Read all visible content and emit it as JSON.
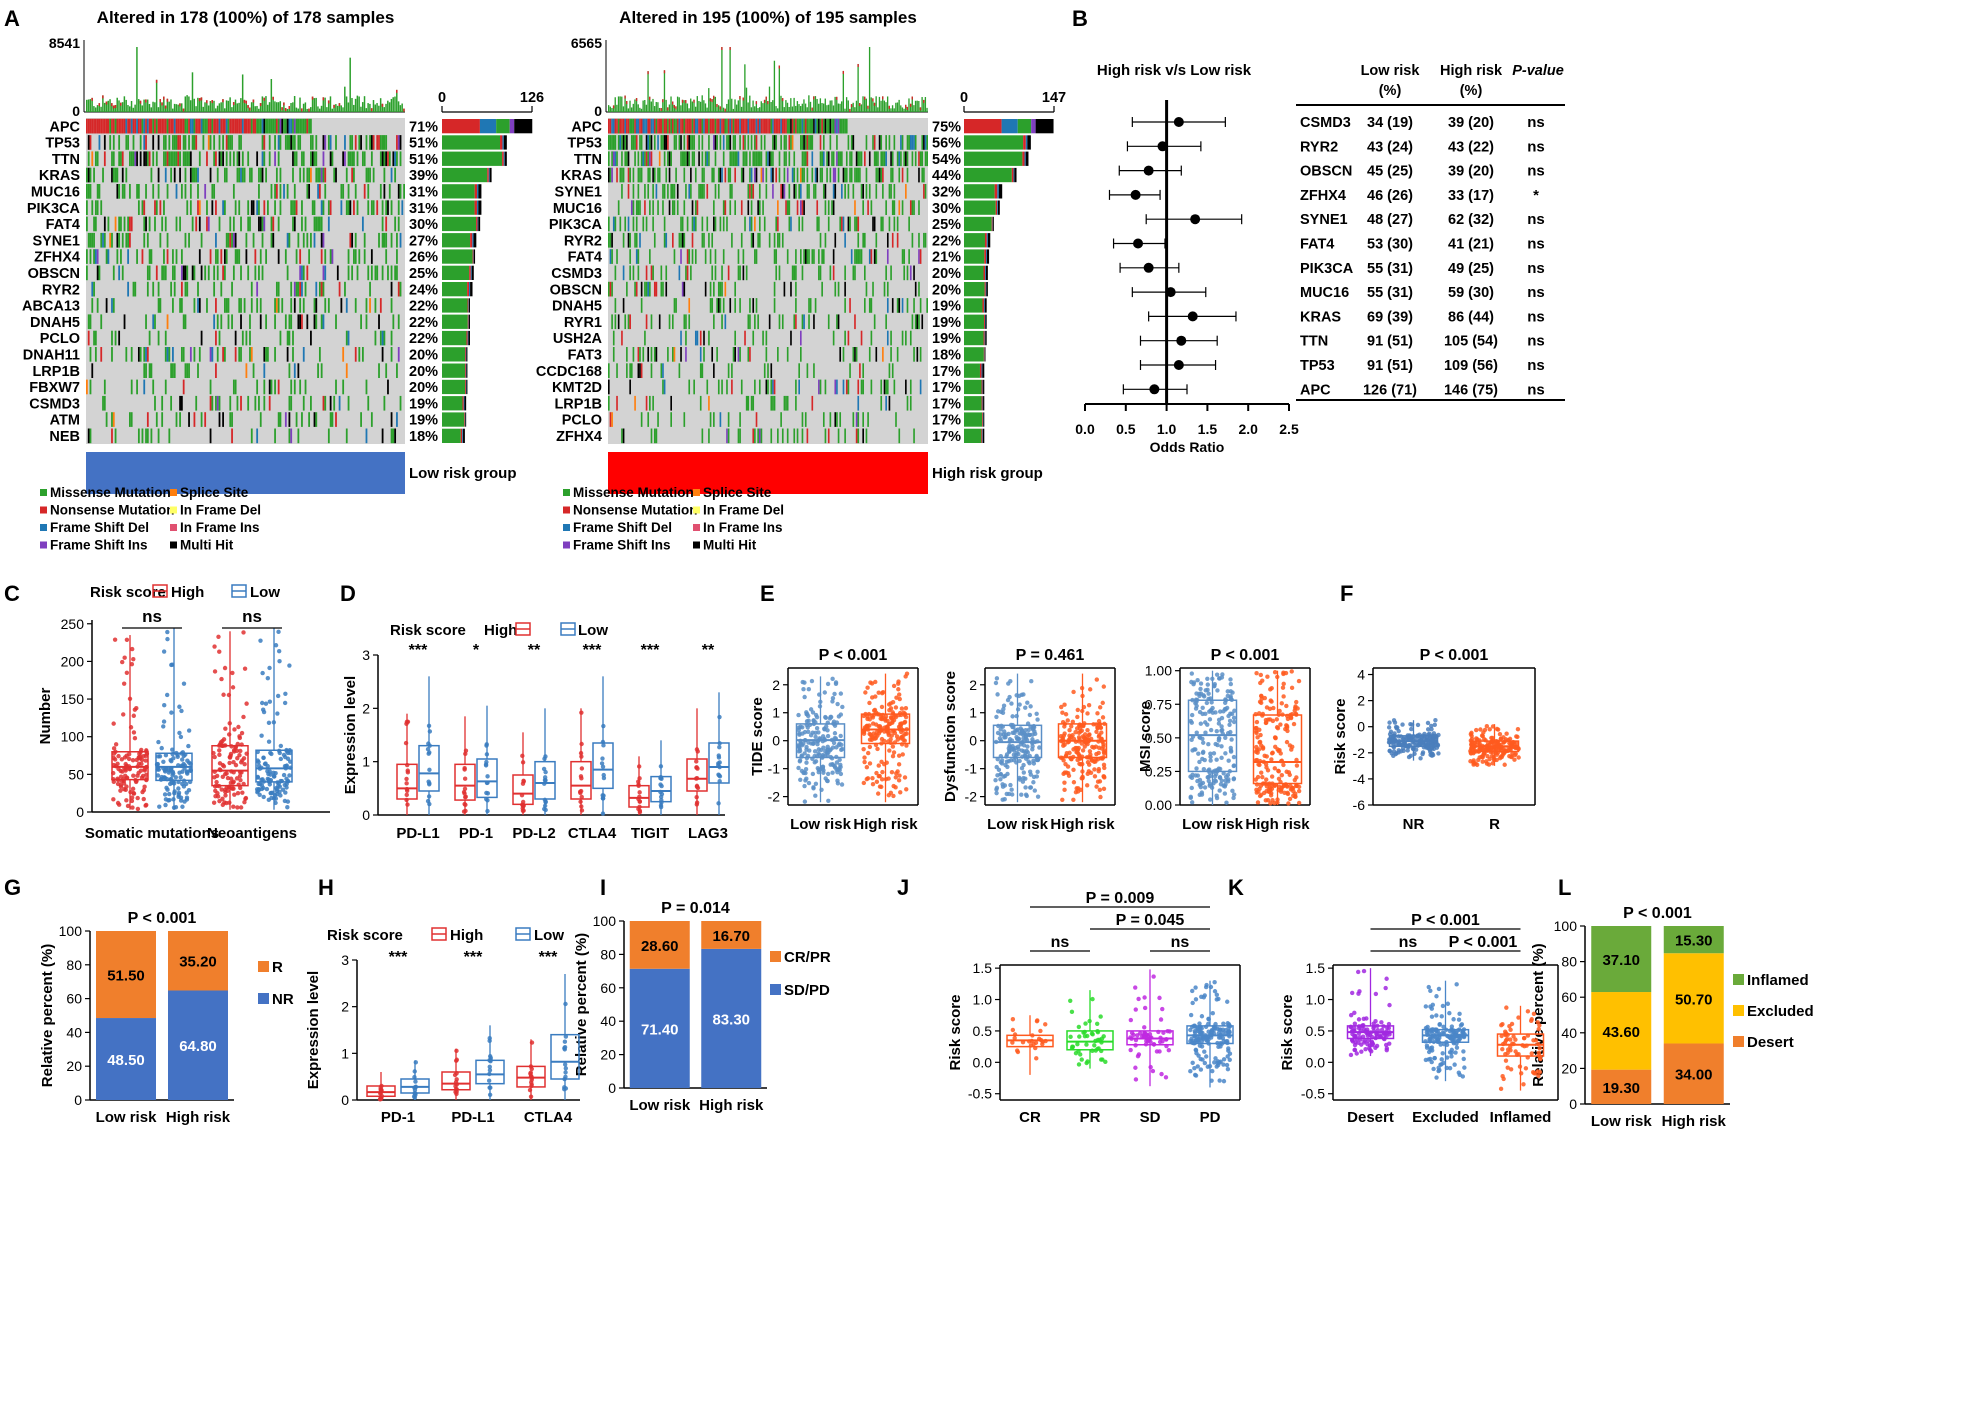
{
  "panel_letters": {
    "A": "A",
    "B": "B",
    "C": "C",
    "D": "D",
    "E": "E",
    "F": "F",
    "G": "G",
    "H": "H",
    "I": "I",
    "J": "J",
    "K": "K",
    "L": "L"
  },
  "colors": {
    "missense": "#2ca02c",
    "nonsense": "#d62728",
    "splice": "#ff7f0e",
    "inframe_del": "#ffff66",
    "fs_del": "#1f77b4",
    "inframe_ins": "#e05070",
    "fs_ins": "#7f3fbf",
    "multi": "#000000",
    "nomut": "#d3d3d3",
    "high": "#e03030",
    "low": "#3a7cc0",
    "orange": "#f07f2c",
    "blue": "#4472c4",
    "green": "#6aaa3a",
    "yellow": "#ffc000",
    "lowgroup": "#4472c4",
    "highgroup": "#ff0000"
  },
  "legend": {
    "items": [
      "Missense Mutation",
      "Splice Site",
      "Nonsense Mutation",
      "In Frame Del",
      "Frame Shift Del",
      "In Frame Ins",
      "Frame Shift Ins",
      "Multi Hit"
    ]
  },
  "chart_data": [
    {
      "id": "A-low",
      "type": "oncoplot",
      "title": "Altered in 178 (100%) of 178 samples",
      "tmb_max": "8541",
      "tmb_min": "0",
      "bar_min": "0",
      "bar_max": "126",
      "group_label": "Low risk group",
      "genes": [
        [
          "APC",
          "71%"
        ],
        [
          "TP53",
          "51%"
        ],
        [
          "TTN",
          "51%"
        ],
        [
          "KRAS",
          "39%"
        ],
        [
          "MUC16",
          "31%"
        ],
        [
          "PIK3CA",
          "31%"
        ],
        [
          "FAT4",
          "30%"
        ],
        [
          "SYNE1",
          "27%"
        ],
        [
          "ZFHX4",
          "26%"
        ],
        [
          "OBSCN",
          "25%"
        ],
        [
          "RYR2",
          "24%"
        ],
        [
          "ABCA13",
          "22%"
        ],
        [
          "DNAH5",
          "22%"
        ],
        [
          "PCLO",
          "22%"
        ],
        [
          "DNAH11",
          "20%"
        ],
        [
          "LRP1B",
          "20%"
        ],
        [
          "FBXW7",
          "20%"
        ],
        [
          "CSMD3",
          "19%"
        ],
        [
          "ATM",
          "19%"
        ],
        [
          "NEB",
          "18%"
        ]
      ]
    },
    {
      "id": "A-high",
      "type": "oncoplot",
      "title": "Altered in 195 (100%) of 195 samples",
      "tmb_max": "6565",
      "tmb_min": "0",
      "bar_min": "0",
      "bar_max": "147",
      "group_label": "High risk group",
      "genes": [
        [
          "APC",
          "75%"
        ],
        [
          "TP53",
          "56%"
        ],
        [
          "TTN",
          "54%"
        ],
        [
          "KRAS",
          "44%"
        ],
        [
          "SYNE1",
          "32%"
        ],
        [
          "MUC16",
          "30%"
        ],
        [
          "PIK3CA",
          "25%"
        ],
        [
          "RYR2",
          "22%"
        ],
        [
          "FAT4",
          "21%"
        ],
        [
          "CSMD3",
          "20%"
        ],
        [
          "OBSCN",
          "20%"
        ],
        [
          "DNAH5",
          "19%"
        ],
        [
          "RYR1",
          "19%"
        ],
        [
          "USH2A",
          "19%"
        ],
        [
          "FAT3",
          "18%"
        ],
        [
          "CCDC168",
          "17%"
        ],
        [
          "KMT2D",
          "17%"
        ],
        [
          "LRP1B",
          "17%"
        ],
        [
          "PCLO",
          "17%"
        ],
        [
          "ZFHX4",
          "17%"
        ]
      ]
    },
    {
      "id": "B",
      "type": "forest",
      "title": "High risk v/s Low risk",
      "xlabel": "Odds Ratio",
      "xticks": [
        "0.0",
        "0.5",
        "1.0",
        "1.5",
        "2.0",
        "2.5"
      ],
      "xlim": [
        0,
        2.5
      ],
      "headers": [
        "Low risk",
        "(%)",
        "High risk",
        "(%)",
        "P-value"
      ],
      "rows": [
        {
          "gene": "CSMD3",
          "low": "34 (19)",
          "high": "39 (20)",
          "p": "ns",
          "or": 1.15,
          "lo": 0.58,
          "hi": 1.72
        },
        {
          "gene": "RYR2",
          "low": "43 (24)",
          "high": "43 (22)",
          "p": "ns",
          "or": 0.95,
          "lo": 0.52,
          "hi": 1.42
        },
        {
          "gene": "OBSCN",
          "low": "45 (25)",
          "high": "39 (20)",
          "p": "ns",
          "or": 0.78,
          "lo": 0.42,
          "hi": 1.18
        },
        {
          "gene": "ZFHX4",
          "low": "46 (26)",
          "high": "33 (17)",
          "p": "*",
          "or": 0.62,
          "lo": 0.3,
          "hi": 0.92
        },
        {
          "gene": "SYNE1",
          "low": "48 (27)",
          "high": "62 (32)",
          "p": "ns",
          "or": 1.35,
          "lo": 0.75,
          "hi": 1.92
        },
        {
          "gene": "FAT4",
          "low": "53 (30)",
          "high": "41 (21)",
          "p": "ns",
          "or": 0.65,
          "lo": 0.35,
          "hi": 0.98
        },
        {
          "gene": "PIK3CA",
          "low": "55 (31)",
          "high": "49 (25)",
          "p": "ns",
          "or": 0.78,
          "lo": 0.43,
          "hi": 1.15
        },
        {
          "gene": "MUC16",
          "low": "55 (31)",
          "high": "59 (30)",
          "p": "ns",
          "or": 1.05,
          "lo": 0.58,
          "hi": 1.48
        },
        {
          "gene": "KRAS",
          "low": "69 (39)",
          "high": "86 (44)",
          "p": "ns",
          "or": 1.32,
          "lo": 0.78,
          "hi": 1.85
        },
        {
          "gene": "TTN",
          "low": "91 (51)",
          "high": "105 (54)",
          "p": "ns",
          "or": 1.18,
          "lo": 0.68,
          "hi": 1.62
        },
        {
          "gene": "TP53",
          "low": "91 (51)",
          "high": "109 (56)",
          "p": "ns",
          "or": 1.15,
          "lo": 0.68,
          "hi": 1.6
        },
        {
          "gene": "APC",
          "low": "126 (71)",
          "high": "146 (75)",
          "p": "ns",
          "or": 0.85,
          "lo": 0.47,
          "hi": 1.25
        }
      ]
    },
    {
      "id": "C",
      "type": "boxplot",
      "legend_title": "Risk score",
      "series": [
        "High",
        "Low"
      ],
      "ylabel": "Number",
      "yticks": [
        "0",
        "50",
        "100",
        "150",
        "200",
        "250"
      ],
      "ylim": [
        0,
        250
      ],
      "groups": [
        {
          "label": "Somatic mutations",
          "sig": "ns",
          "high": {
            "q1": 43,
            "med": 60,
            "q3": 80,
            "lo": 3,
            "hi": 235
          },
          "low": {
            "q1": 42,
            "med": 60,
            "q3": 78,
            "lo": 3,
            "hi": 245
          }
        },
        {
          "label": "Neoantigens",
          "sig": "ns",
          "high": {
            "q1": 35,
            "med": 55,
            "q3": 88,
            "lo": 3,
            "hi": 240
          },
          "low": {
            "q1": 40,
            "med": 58,
            "q3": 82,
            "lo": 3,
            "hi": 245
          }
        }
      ]
    },
    {
      "id": "D",
      "type": "boxplot",
      "legend_title": "Risk score",
      "series": [
        "High",
        "Low"
      ],
      "ylabel": "Expression level",
      "yticks": [
        "0",
        "1",
        "2",
        "3"
      ],
      "ylim": [
        0,
        3
      ],
      "groups": [
        {
          "label": "PD-L1",
          "sig": "***",
          "high": {
            "q1": 0.3,
            "med": 0.5,
            "q3": 0.95,
            "lo": 0,
            "hi": 1.9
          },
          "low": {
            "q1": 0.45,
            "med": 0.78,
            "q3": 1.3,
            "lo": 0,
            "hi": 2.6
          }
        },
        {
          "label": "PD-1",
          "sig": "*",
          "high": {
            "q1": 0.28,
            "med": 0.55,
            "q3": 0.95,
            "lo": 0,
            "hi": 1.85
          },
          "low": {
            "q1": 0.33,
            "med": 0.63,
            "q3": 1.05,
            "lo": 0,
            "hi": 2.05
          }
        },
        {
          "label": "PD-L2",
          "sig": "**",
          "high": {
            "q1": 0.2,
            "med": 0.4,
            "q3": 0.75,
            "lo": 0,
            "hi": 1.55
          },
          "low": {
            "q1": 0.3,
            "med": 0.6,
            "q3": 1.0,
            "lo": 0,
            "hi": 2.0
          }
        },
        {
          "label": "CTLA4",
          "sig": "***",
          "high": {
            "q1": 0.3,
            "med": 0.55,
            "q3": 1.0,
            "lo": 0,
            "hi": 2.0
          },
          "low": {
            "q1": 0.5,
            "med": 0.85,
            "q3": 1.35,
            "lo": 0,
            "hi": 2.6
          }
        },
        {
          "label": "TIGIT",
          "sig": "***",
          "high": {
            "q1": 0.15,
            "med": 0.32,
            "q3": 0.55,
            "lo": 0,
            "hi": 1.1
          },
          "low": {
            "q1": 0.25,
            "med": 0.45,
            "q3": 0.72,
            "lo": 0,
            "hi": 1.4
          }
        },
        {
          "label": "LAG3",
          "sig": "**",
          "high": {
            "q1": 0.45,
            "med": 0.68,
            "q3": 1.05,
            "lo": 0,
            "hi": 2.0
          },
          "low": {
            "q1": 0.6,
            "med": 0.9,
            "q3": 1.35,
            "lo": 0,
            "hi": 2.3
          }
        }
      ]
    },
    {
      "id": "E1",
      "type": "boxplot",
      "title": "P < 0.001",
      "ylabel": "TIDE score",
      "yticks": [
        "-2",
        "-1",
        "0",
        "1",
        "2"
      ],
      "ylim": [
        -2.3,
        2.6
      ],
      "categories": [
        "Low risk",
        "High risk"
      ],
      "boxes": [
        {
          "q1": -0.6,
          "med": 0.02,
          "q3": 0.6,
          "lo": -2.2,
          "hi": 2.3
        },
        {
          "q1": -0.1,
          "med": 0.4,
          "q3": 0.95,
          "lo": -2.2,
          "hi": 2.4
        }
      ]
    },
    {
      "id": "E2",
      "type": "boxplot",
      "title": "P = 0.461",
      "ylabel": "Dysfunction score",
      "yticks": [
        "-2",
        "-1",
        "0",
        "1",
        "2"
      ],
      "ylim": [
        -2.3,
        2.6
      ],
      "categories": [
        "Low risk",
        "High risk"
      ],
      "boxes": [
        {
          "q1": -0.6,
          "med": -0.05,
          "q3": 0.55,
          "lo": -2.2,
          "hi": 2.4
        },
        {
          "q1": -0.6,
          "med": 0.0,
          "q3": 0.6,
          "lo": -2.2,
          "hi": 2.4
        }
      ]
    },
    {
      "id": "E3",
      "type": "boxplot",
      "title": "P < 0.001",
      "ylabel": "MSI score",
      "yticks": [
        "0.00",
        "0.25",
        "0.50",
        "0.75",
        "1.00"
      ],
      "ylim": [
        0,
        1.02
      ],
      "categories": [
        "Low risk",
        "High risk"
      ],
      "boxes": [
        {
          "q1": 0.25,
          "med": 0.52,
          "q3": 0.78,
          "lo": 0.0,
          "hi": 1.0
        },
        {
          "q1": 0.16,
          "med": 0.32,
          "q3": 0.67,
          "lo": 0.0,
          "hi": 1.0
        }
      ]
    },
    {
      "id": "F",
      "type": "boxplot",
      "title": "P < 0.001",
      "ylabel": "Risk score",
      "yticks": [
        "-6",
        "-4",
        "-2",
        "0",
        "2",
        "4"
      ],
      "ylim": [
        -6,
        4.5
      ],
      "categories": [
        "NR",
        "R"
      ],
      "boxes": [
        {
          "q1": -1.5,
          "med": -1.1,
          "q3": -0.7,
          "lo": -2.6,
          "hi": 0.5
        },
        {
          "q1": -1.9,
          "med": -1.5,
          "q3": -1.1,
          "lo": -3.0,
          "hi": 0.2
        }
      ]
    },
    {
      "id": "G",
      "type": "stacked_bar",
      "title": "P < 0.001",
      "ylabel": "Relative percent (%)",
      "yticks": [
        "0",
        "20",
        "40",
        "60",
        "80",
        "100"
      ],
      "categories": [
        "Low risk",
        "High risk"
      ],
      "series": [
        {
          "name": "NR",
          "values": [
            48.5,
            64.8
          ],
          "labels": [
            "48.50",
            "64.80"
          ]
        },
        {
          "name": "R",
          "values": [
            51.5,
            35.2
          ],
          "labels": [
            "51.50",
            "35.20"
          ]
        }
      ]
    },
    {
      "id": "H",
      "type": "boxplot",
      "legend_title": "Risk score",
      "series": [
        "High",
        "Low"
      ],
      "ylabel": "Expression level",
      "yticks": [
        "0",
        "1",
        "2",
        "3"
      ],
      "ylim": [
        0,
        3
      ],
      "groups": [
        {
          "label": "PD-1",
          "sig": "***",
          "high": {
            "q1": 0.08,
            "med": 0.17,
            "q3": 0.3,
            "lo": 0,
            "hi": 0.6
          },
          "low": {
            "q1": 0.15,
            "med": 0.28,
            "q3": 0.45,
            "lo": 0,
            "hi": 0.85
          }
        },
        {
          "label": "PD-L1",
          "sig": "***",
          "high": {
            "q1": 0.22,
            "med": 0.35,
            "q3": 0.6,
            "lo": 0,
            "hi": 1.1
          },
          "low": {
            "q1": 0.35,
            "med": 0.55,
            "q3": 0.85,
            "lo": 0,
            "hi": 1.6
          }
        },
        {
          "label": "CTLA4",
          "sig": "***",
          "high": {
            "q1": 0.28,
            "med": 0.48,
            "q3": 0.72,
            "lo": 0,
            "hi": 1.3
          },
          "low": {
            "q1": 0.45,
            "med": 0.82,
            "q3": 1.4,
            "lo": 0,
            "hi": 2.7
          }
        }
      ]
    },
    {
      "id": "I",
      "type": "stacked_bar",
      "title": "P = 0.014",
      "ylabel": "Relative percent (%)",
      "yticks": [
        "0",
        "20",
        "40",
        "60",
        "80",
        "100"
      ],
      "categories": [
        "Low risk",
        "High risk"
      ],
      "series": [
        {
          "name": "SD/PD",
          "values": [
            71.4,
            83.3
          ],
          "labels": [
            "71.40",
            "83.30"
          ]
        },
        {
          "name": "CR/PR",
          "values": [
            28.6,
            16.7
          ],
          "labels": [
            "28.60",
            "16.70"
          ]
        }
      ]
    },
    {
      "id": "J",
      "type": "boxplot",
      "ylabel": "Risk score",
      "yticks": [
        "-0.5",
        "0.0",
        "0.5",
        "1.0",
        "1.5"
      ],
      "ylim": [
        -0.6,
        1.55
      ],
      "categories": [
        "CR",
        "PR",
        "SD",
        "PD"
      ],
      "boxes": [
        {
          "q1": 0.25,
          "med": 0.35,
          "q3": 0.43,
          "lo": -0.2,
          "hi": 0.75
        },
        {
          "q1": 0.2,
          "med": 0.33,
          "q3": 0.5,
          "lo": -0.1,
          "hi": 1.15
        },
        {
          "q1": 0.28,
          "med": 0.38,
          "q3": 0.5,
          "lo": -0.38,
          "hi": 1.48
        },
        {
          "q1": 0.3,
          "med": 0.43,
          "q3": 0.58,
          "lo": -0.4,
          "hi": 1.3
        }
      ],
      "comparisons": [
        {
          "label": "ns",
          "from": 0,
          "to": 1,
          "level": 0
        },
        {
          "label": "ns",
          "from": 2,
          "to": 3,
          "level": 0
        },
        {
          "label": "P = 0.045",
          "from": 1,
          "to": 3,
          "level": 1
        },
        {
          "label": "P = 0.009",
          "from": 0,
          "to": 3,
          "level": 2
        }
      ]
    },
    {
      "id": "K",
      "type": "boxplot",
      "ylabel": "Risk score",
      "yticks": [
        "-0.5",
        "0.0",
        "0.5",
        "1.0",
        "1.5"
      ],
      "ylim": [
        -0.6,
        1.55
      ],
      "categories": [
        "Desert",
        "Excluded",
        "Inflamed"
      ],
      "boxes": [
        {
          "q1": 0.38,
          "med": 0.48,
          "q3": 0.58,
          "lo": 0.1,
          "hi": 1.5
        },
        {
          "q1": 0.32,
          "med": 0.43,
          "q3": 0.52,
          "lo": -0.3,
          "hi": 1.3
        },
        {
          "q1": 0.1,
          "med": 0.28,
          "q3": 0.45,
          "lo": -0.45,
          "hi": 0.9
        }
      ],
      "comparisons": [
        {
          "label": "ns",
          "from": 0,
          "to": 1,
          "level": 0
        },
        {
          "label": "P < 0.001",
          "from": 1,
          "to": 2,
          "level": 0
        },
        {
          "label": "P < 0.001",
          "from": 0,
          "to": 2,
          "level": 1
        }
      ]
    },
    {
      "id": "L",
      "type": "stacked_bar",
      "title": "P < 0.001",
      "ylabel": "Relative percent (%)",
      "yticks": [
        "0",
        "20",
        "40",
        "60",
        "80",
        "100"
      ],
      "categories": [
        "Low risk",
        "High risk"
      ],
      "series": [
        {
          "name": "Desert",
          "values": [
            19.3,
            34.0
          ],
          "labels": [
            "19.30",
            "34.00"
          ]
        },
        {
          "name": "Excluded",
          "values": [
            43.6,
            50.7
          ],
          "labels": [
            "43.60",
            "50.70"
          ]
        },
        {
          "name": "Inflamed",
          "values": [
            37.1,
            15.3
          ],
          "labels": [
            "37.10",
            "15.30"
          ]
        }
      ]
    }
  ]
}
